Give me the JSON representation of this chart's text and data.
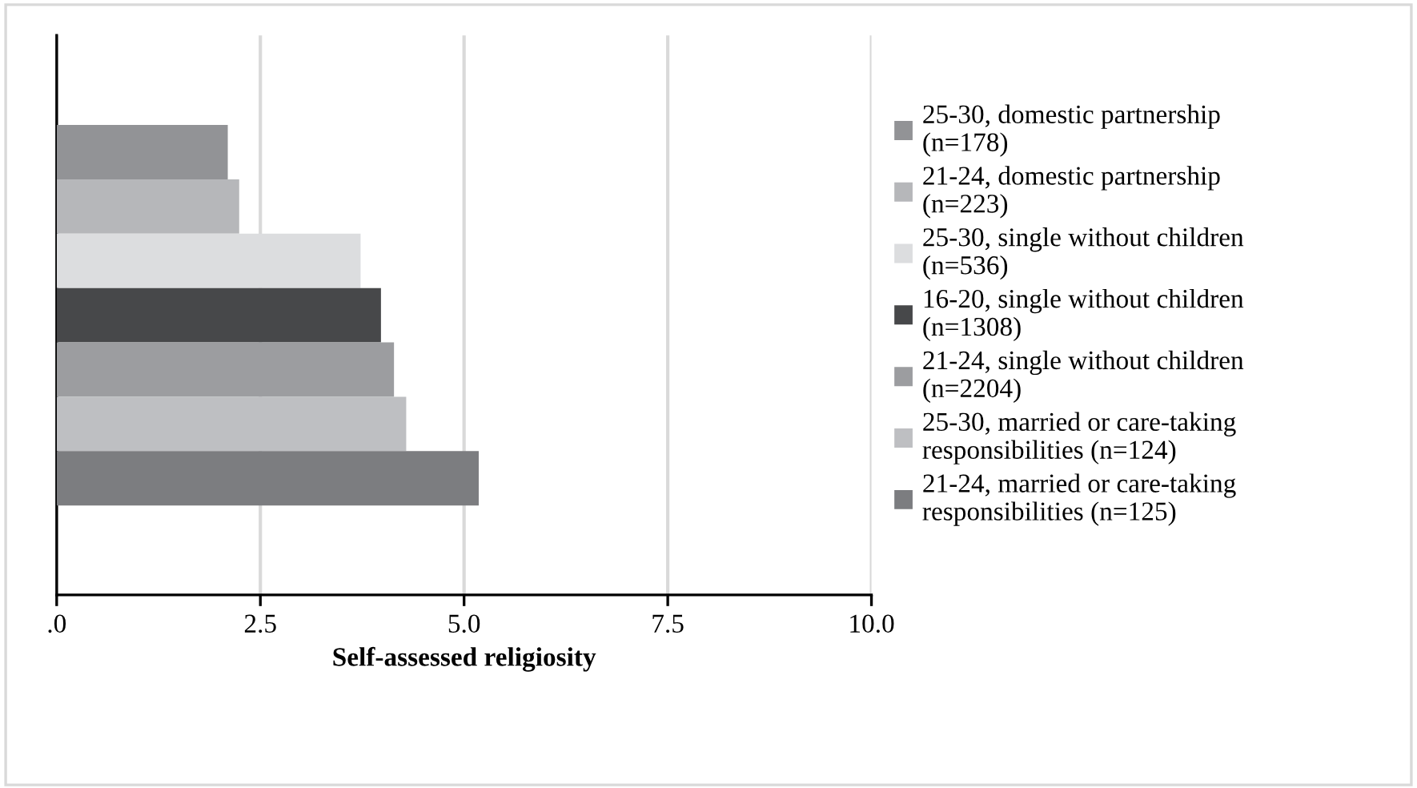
{
  "chart_data": {
    "type": "bar",
    "orientation": "horizontal",
    "categories": [
      null
    ],
    "xlabel": "Self-assessed religiosity",
    "xlim": [
      0,
      10
    ],
    "xticks": [
      {
        "value": 0,
        "label": ".0"
      },
      {
        "value": 2.5,
        "label": "2.5"
      },
      {
        "value": 5,
        "label": "5.0"
      },
      {
        "value": 7.5,
        "label": "7.5"
      },
      {
        "value": 10,
        "label": "10.0"
      }
    ],
    "grid": "x",
    "legend": "right",
    "tick_labels": "x",
    "series": [
      {
        "name": "25-30, domestic partnership (n=178)",
        "color": "#929396",
        "values": [
          2.1
        ]
      },
      {
        "name": "21-24, domestic partnership (n=223)",
        "color": "#b6b7ba",
        "values": [
          2.24
        ]
      },
      {
        "name": "25-30, single without children (n=536)",
        "color": "#dcdddf",
        "values": [
          3.73
        ]
      },
      {
        "name": "16-20, single without children (n=1308)",
        "color": "#47484a",
        "values": [
          3.98
        ]
      },
      {
        "name": "21-24, single without children (n=2204)",
        "color": "#9c9da0",
        "values": [
          4.14
        ]
      },
      {
        "name": "25-30, married or care-taking responsibilities (n=124)",
        "color": "#bebfc2",
        "values": [
          4.29
        ]
      },
      {
        "name": "21-24, married or care-taking responsibilities (n=125)",
        "color": "#7c7d80",
        "values": [
          5.18
        ]
      }
    ]
  }
}
